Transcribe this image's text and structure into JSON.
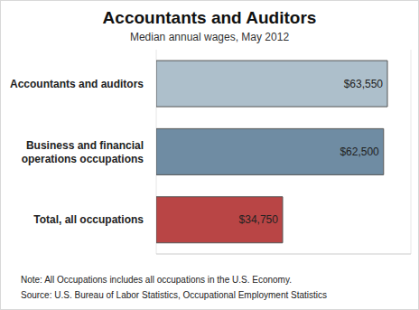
{
  "chart_data": {
    "type": "bar",
    "title": "Accountants and Auditors",
    "subtitle": "Median annual wages, May 2012",
    "categories": [
      "Accountants and auditors",
      "Business and financial operations occupations",
      "Total, all occupations"
    ],
    "values": [
      63550,
      62500,
      34750
    ],
    "value_labels": [
      "$63,550",
      "$62,500",
      "$34,750"
    ],
    "colors": [
      "#adbfcb",
      "#6f8ca3",
      "#b94545"
    ],
    "orientation": "horizontal",
    "data_labels": true,
    "tick_labels": "y",
    "xlim": [
      0,
      70000
    ],
    "xticks": [
      0,
      10000,
      20000,
      30000,
      40000,
      50000,
      60000,
      70000
    ],
    "grid": true,
    "note": "Note: All Occupations includes all occupations in the U.S. Economy.",
    "source": "Source: U.S. Bureau of Labor Statistics, Occupational Employment Statistics"
  }
}
